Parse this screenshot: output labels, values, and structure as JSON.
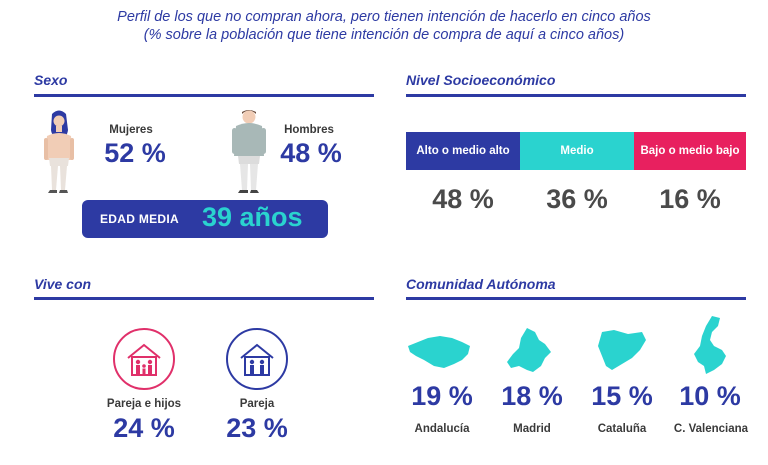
{
  "header": {
    "title_line1": "Perfil de los que no compran ahora, pero tienen intención de hacerlo en cinco años",
    "title_line2": "(% sobre la población que tiene intención de compra de aquí a cinco años)"
  },
  "sexo": {
    "title": "Sexo",
    "women_label": "Mujeres",
    "women_value": "52 %",
    "men_label": "Hombres",
    "men_value": "48 %",
    "age_label": "EDAD MEDIA",
    "age_value": "39 años",
    "icons": [
      "woman-figure-icon",
      "man-figure-icon"
    ]
  },
  "nivel": {
    "title": "Nivel Socioeconómico",
    "segments": [
      {
        "label": "Alto o medio alto",
        "value": "48 %",
        "color": "#2d3aa3"
      },
      {
        "label": "Medio",
        "value": "36 %",
        "color": "#2ad3cf"
      },
      {
        "label": "Bajo o medio bajo",
        "value": "16 %",
        "color": "#e8205f"
      }
    ]
  },
  "vive": {
    "title": "Vive con",
    "items": [
      {
        "label": "Pareja e hijos",
        "value": "24 %",
        "color": "#e0306a",
        "icon": "family-house-icon"
      },
      {
        "label": "Pareja",
        "value": "23 %",
        "color": "#2d3aa3",
        "icon": "couple-house-icon"
      }
    ]
  },
  "comunidad": {
    "title": "Comunidad Autónoma",
    "map_color": "#2ad3cf",
    "items": [
      {
        "label": "Andalucía",
        "value": "19 %",
        "icon": "andalucia-map-icon"
      },
      {
        "label": "Madrid",
        "value": "18 %",
        "icon": "madrid-map-icon"
      },
      {
        "label": "Cataluña",
        "value": "15 %",
        "icon": "cataluna-map-icon"
      },
      {
        "label": "C. Valenciana",
        "value": "10 %",
        "icon": "valenciana-map-icon"
      }
    ]
  }
}
